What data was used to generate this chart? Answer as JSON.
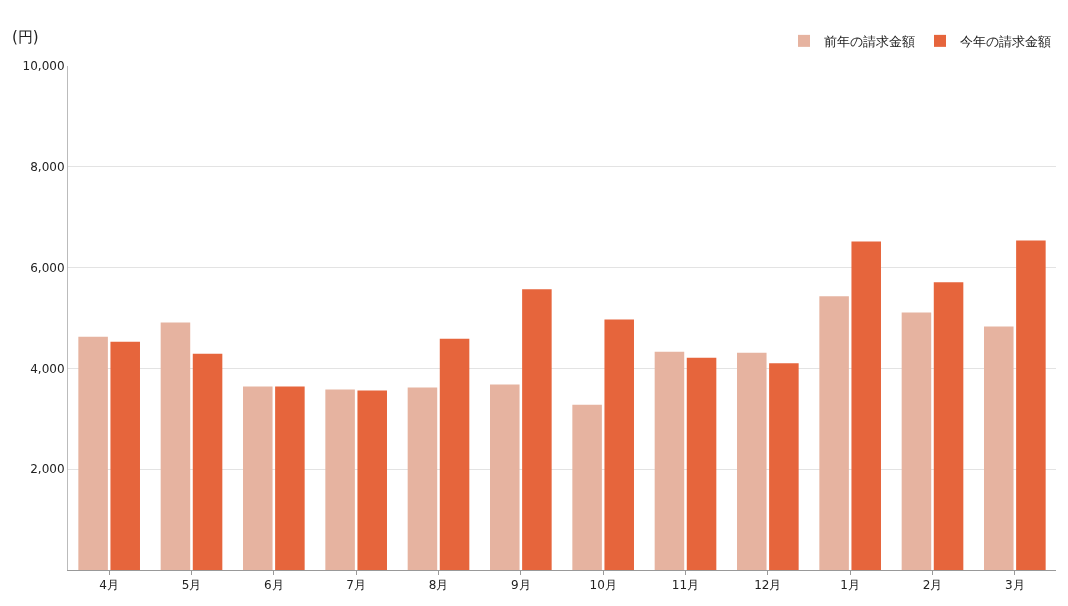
{
  "chart_data": {
    "type": "bar",
    "ylabel": "(円)",
    "categories": [
      "4月",
      "5月",
      "6月",
      "7月",
      "8月",
      "9月",
      "10月",
      "11月",
      "12月",
      "1月",
      "2月",
      "3月"
    ],
    "series": [
      {
        "name": "前年の請求金額",
        "color": "#e6b3a0",
        "values": [
          4630,
          4910,
          3640,
          3580,
          3620,
          3680,
          3280,
          4330,
          4310,
          5430,
          5110,
          4830
        ]
      },
      {
        "name": "今年の請求金額",
        "color": "#e6653c",
        "values": [
          4530,
          4290,
          3640,
          3560,
          4590,
          5570,
          4970,
          4210,
          4100,
          6520,
          5710,
          6540
        ]
      }
    ],
    "ylim": [
      0,
      10000
    ],
    "yticks": [
      {
        "value": 0,
        "label": null
      },
      {
        "value": 2000,
        "label": "2,000"
      },
      {
        "value": 4000,
        "label": "4,000"
      },
      {
        "value": 6000,
        "label": "6,000"
      },
      {
        "value": 8000,
        "label": "8,000"
      },
      {
        "value": 10000,
        "label": "10,000"
      }
    ],
    "grid": "y",
    "legend": "top right"
  }
}
